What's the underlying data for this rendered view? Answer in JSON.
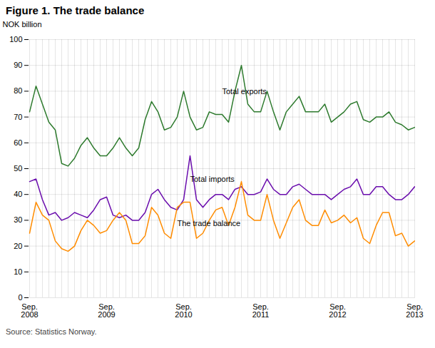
{
  "chart_data": {
    "type": "line",
    "title": "Figure 1. The trade balance",
    "ylabel": "NOK billion",
    "source": "Source: Statistics Norway.",
    "categories": [
      "Sep.\n2008",
      null,
      null,
      null,
      null,
      null,
      null,
      null,
      null,
      null,
      null,
      null,
      "Sep.\n2009",
      null,
      null,
      null,
      null,
      null,
      null,
      null,
      null,
      null,
      null,
      null,
      "Sep.\n2010",
      null,
      null,
      null,
      null,
      null,
      null,
      null,
      null,
      null,
      null,
      null,
      "Sep.\n2011",
      null,
      null,
      null,
      null,
      null,
      null,
      null,
      null,
      null,
      null,
      null,
      "Sep.\n2012",
      null,
      null,
      null,
      null,
      null,
      null,
      null,
      null,
      null,
      null,
      null,
      "Sep.\n2013"
    ],
    "series": [
      {
        "color": "#2d7a2d",
        "values": [
          72,
          82,
          75,
          68,
          65,
          52,
          51,
          54,
          59,
          62,
          58,
          55,
          55,
          58,
          62,
          58,
          55,
          58,
          69,
          76,
          72,
          65,
          66,
          70,
          80,
          70,
          65,
          66,
          72,
          71,
          71,
          68,
          80,
          90,
          75,
          72,
          72,
          80,
          72,
          65,
          72,
          75,
          78,
          72,
          72,
          72,
          75,
          68,
          70,
          72,
          75,
          76,
          69,
          68,
          70,
          70,
          72,
          68,
          67,
          65,
          66
        ]
      },
      {
        "color": "#6a0dad",
        "values": [
          45,
          46,
          38,
          32,
          33,
          30,
          31,
          33,
          32,
          31,
          34,
          38,
          39,
          32,
          31,
          32,
          30,
          30,
          33,
          40,
          42,
          38,
          35,
          34,
          38,
          55,
          38,
          35,
          38,
          40,
          40,
          38,
          42,
          43,
          40,
          40,
          41,
          46,
          42,
          40,
          40,
          43,
          44,
          42,
          40,
          40,
          40,
          38,
          40,
          42,
          43,
          46,
          40,
          40,
          43,
          43,
          40,
          38,
          38,
          40,
          43
        ]
      },
      {
        "color": "#ff8c00",
        "values": [
          25,
          37,
          32,
          30,
          22,
          19,
          18,
          20,
          26,
          30,
          28,
          25,
          26,
          30,
          33,
          30,
          21,
          21,
          24,
          35,
          32,
          25,
          23,
          35,
          37,
          37,
          23,
          25,
          30,
          34,
          35,
          28,
          35,
          45,
          32,
          30,
          30,
          40,
          30,
          23,
          29,
          35,
          38,
          30,
          28,
          28,
          34,
          29,
          30,
          32,
          29,
          31,
          23,
          21,
          28,
          33,
          33,
          24,
          25,
          20,
          22
        ]
      }
    ],
    "annotations": [
      {
        "text": "Total exports",
        "x": 30,
        "y": 78
      },
      {
        "text": "Total imports",
        "x": 25,
        "y": 44
      },
      {
        "text": "The trade balance",
        "x": 23,
        "y": 27
      }
    ],
    "ylim": [
      0,
      100
    ],
    "yticks": [
      0,
      10,
      20,
      30,
      40,
      50,
      60,
      70,
      80,
      90,
      100
    ],
    "grid": true
  }
}
